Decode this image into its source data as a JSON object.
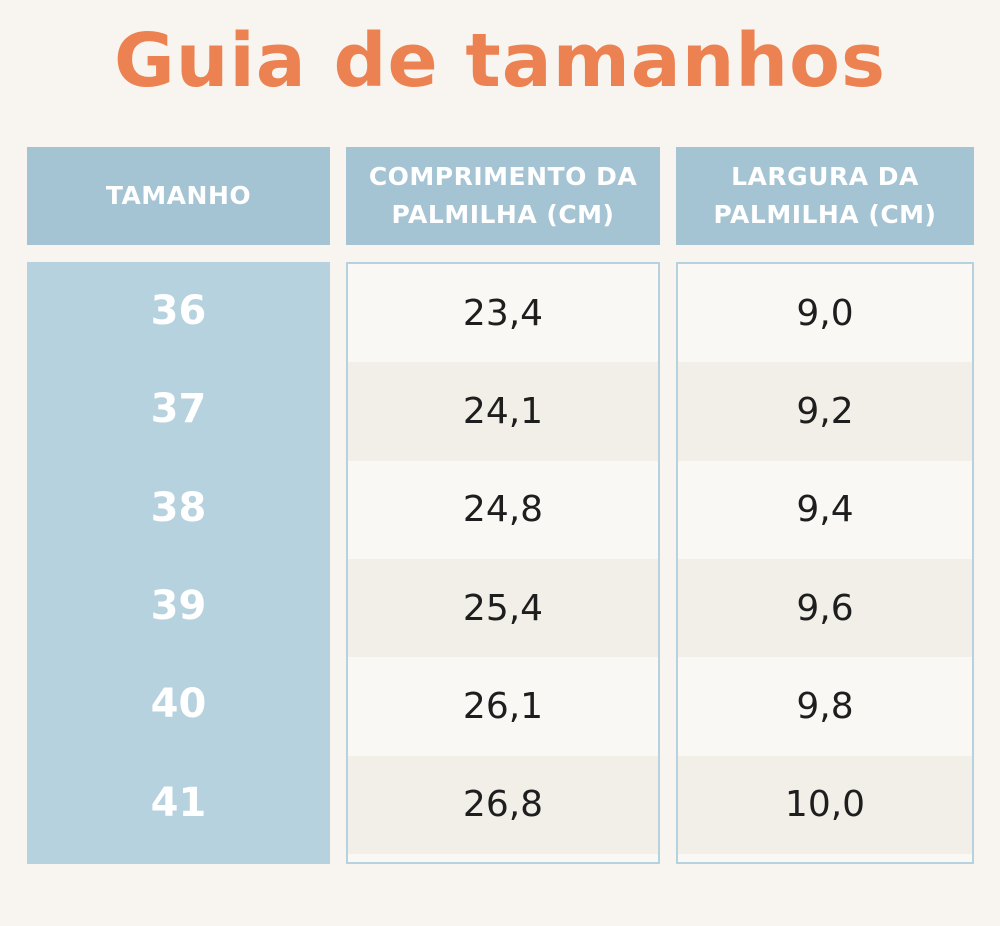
{
  "title": "Guia de tamanhos",
  "headers": {
    "size": "TAMANHO",
    "length": "COMPRIMENTO DA\nPALMILHA (CM)",
    "width": "LARGURA DA\nPALMILHA (CM)"
  },
  "rows": [
    {
      "size": "36",
      "length": "23,4",
      "width": "9,0"
    },
    {
      "size": "37",
      "length": "24,1",
      "width": "9,2"
    },
    {
      "size": "38",
      "length": "24,8",
      "width": "9,4"
    },
    {
      "size": "39",
      "length": "25,4",
      "width": "9,6"
    },
    {
      "size": "40",
      "length": "26,1",
      "width": "9,8"
    },
    {
      "size": "41",
      "length": "26,8",
      "width": "10,0"
    }
  ],
  "colors": {
    "title": "#ec8252",
    "header_bg": "#a4c4d4",
    "size_column_bg": "#b5d2de",
    "alt_row_bg": "#f2eee8"
  }
}
